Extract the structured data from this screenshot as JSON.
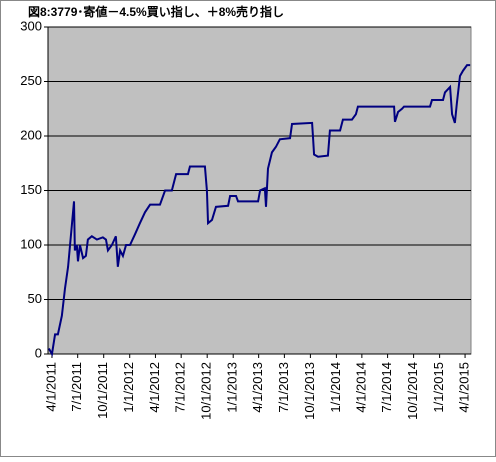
{
  "chart_data": {
    "type": "line",
    "title": "図8:3779･寄値－4.5%買い指し、＋8%売り指し",
    "x": [
      "2011-03-21",
      "2011-04-01",
      "2011-04-12",
      "2011-04-22",
      "2011-05-06",
      "2011-05-17",
      "2011-05-28",
      "2011-06-04",
      "2011-06-11",
      "2011-06-18",
      "2011-06-21",
      "2011-06-28",
      "2011-07-02",
      "2011-07-09",
      "2011-07-20",
      "2011-07-30",
      "2011-08-06",
      "2011-08-20",
      "2011-09-07",
      "2011-09-28",
      "2011-10-09",
      "2011-10-16",
      "2011-10-30",
      "2011-11-13",
      "2011-11-20",
      "2011-11-28",
      "2011-12-08",
      "2011-12-19",
      "2012-01-02",
      "2012-01-20",
      "2012-02-06",
      "2012-02-24",
      "2012-03-13",
      "2012-04-17",
      "2012-05-05",
      "2012-05-29",
      "2012-06-13",
      "2012-07-25",
      "2012-08-01",
      "2012-09-23",
      "2012-09-30",
      "2012-10-04",
      "2012-10-18",
      "2012-11-01",
      "2012-12-14",
      "2012-12-21",
      "2013-01-11",
      "2013-01-18",
      "2013-02-12",
      "2013-03-30",
      "2013-04-06",
      "2013-04-23",
      "2013-04-27",
      "2013-05-04",
      "2013-05-18",
      "2013-06-01",
      "2013-06-15",
      "2013-07-21",
      "2013-07-28",
      "2013-10-07",
      "2013-10-10",
      "2013-10-14",
      "2013-10-28",
      "2013-12-02",
      "2013-12-09",
      "2014-01-14",
      "2014-01-24",
      "2014-02-25",
      "2014-03-11",
      "2014-03-18",
      "2014-07-24",
      "2014-07-27",
      "2014-08-07",
      "2014-08-21",
      "2014-08-28",
      "2014-11-28",
      "2014-12-05",
      "2015-01-13",
      "2015-01-20",
      "2015-02-07",
      "2015-02-14",
      "2015-02-24",
      "2015-03-03",
      "2015-03-14",
      "2015-03-25",
      "2015-04-08",
      "2015-04-19"
    ],
    "series": [
      {
        "color": "#000080",
        "values": [
          5,
          0,
          18,
          18,
          35,
          60,
          80,
          100,
          120,
          140,
          95,
          100,
          85,
          100,
          88,
          90,
          105,
          108,
          105,
          107,
          105,
          95,
          100,
          108,
          80,
          95,
          90,
          100,
          100,
          110,
          120,
          130,
          137,
          137,
          150,
          150,
          165,
          165,
          172,
          172,
          150,
          120,
          123,
          135,
          136,
          145,
          145,
          140,
          140,
          140,
          150,
          152,
          135,
          170,
          185,
          190,
          197,
          198,
          211,
          212,
          200,
          183,
          181,
          182,
          205,
          205,
          215,
          215,
          220,
          227,
          227,
          213,
          222,
          225,
          227,
          227,
          233,
          233,
          240,
          245,
          220,
          212,
          230,
          255,
          260,
          265,
          265
        ]
      }
    ],
    "xlim": [
      "2011-03-18",
      "2015-04-22"
    ],
    "xticks": [
      {
        "value": "2011-04-01",
        "label": "4/1/2011"
      },
      {
        "value": "2011-07-01",
        "label": "7/1/2011"
      },
      {
        "value": "2011-10-01",
        "label": "10/1/2011"
      },
      {
        "value": "2012-01-01",
        "label": "1/1/2012"
      },
      {
        "value": "2012-04-01",
        "label": "4/1/2012"
      },
      {
        "value": "2012-07-01",
        "label": "7/1/2012"
      },
      {
        "value": "2012-10-01",
        "label": "10/1/2012"
      },
      {
        "value": "2013-01-01",
        "label": "1/1/2013"
      },
      {
        "value": "2013-04-01",
        "label": "4/1/2013"
      },
      {
        "value": "2013-07-01",
        "label": "7/1/2013"
      },
      {
        "value": "2013-10-01",
        "label": "10/1/2013"
      },
      {
        "value": "2014-01-01",
        "label": "1/1/2014"
      },
      {
        "value": "2014-04-01",
        "label": "4/1/2014"
      },
      {
        "value": "2014-07-01",
        "label": "7/1/2014"
      },
      {
        "value": "2014-10-01",
        "label": "10/1/2014"
      },
      {
        "value": "2015-01-01",
        "label": "1/1/2015"
      },
      {
        "value": "2015-04-01",
        "label": "4/1/2015"
      }
    ],
    "ylim": [
      0,
      300
    ],
    "yticks": [
      0,
      50,
      100,
      150,
      200,
      250,
      300
    ],
    "grid": true
  }
}
